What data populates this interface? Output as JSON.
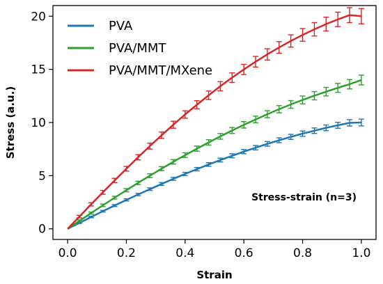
{
  "chart_data": {
    "type": "line",
    "title": "",
    "xlabel": "Strain",
    "ylabel": "Stress (a.u.)",
    "xlim": [
      -0.05,
      1.05
    ],
    "ylim": [
      -1,
      21
    ],
    "xticks": [
      0.0,
      0.2,
      0.4,
      0.6,
      0.8,
      1.0
    ],
    "xtick_labels": [
      "0.0",
      "0.2",
      "0.4",
      "0.6",
      "0.8",
      "1.0"
    ],
    "yticks": [
      0,
      5,
      10,
      15,
      20
    ],
    "ytick_labels": [
      "0",
      "5",
      "10",
      "15",
      "20"
    ],
    "grid": false,
    "legend_position": "top-left",
    "annotation": "Stress-strain (n=3)",
    "x": [
      0.0,
      0.04,
      0.08,
      0.12,
      0.16,
      0.2,
      0.24,
      0.28,
      0.32,
      0.36,
      0.4,
      0.44,
      0.48,
      0.52,
      0.56,
      0.6,
      0.64,
      0.68,
      0.72,
      0.76,
      0.8,
      0.84,
      0.88,
      0.92,
      0.96,
      1.0
    ],
    "series": [
      {
        "name": "PVA",
        "color": "#1f77b4",
        "values": [
          0.0,
          0.56,
          1.11,
          1.66,
          2.19,
          2.72,
          3.23,
          3.73,
          4.22,
          4.7,
          5.16,
          5.61,
          6.05,
          6.47,
          6.87,
          7.26,
          7.63,
          7.99,
          8.33,
          8.65,
          8.95,
          9.23,
          9.5,
          9.74,
          9.97,
          10.0
        ],
        "error": [
          0.05,
          0.06,
          0.07,
          0.08,
          0.09,
          0.1,
          0.11,
          0.12,
          0.13,
          0.14,
          0.15,
          0.16,
          0.17,
          0.18,
          0.19,
          0.2,
          0.21,
          0.22,
          0.23,
          0.24,
          0.25,
          0.26,
          0.27,
          0.28,
          0.3,
          0.32
        ]
      },
      {
        "name": "PVA/MMT",
        "color": "#2ca02c",
        "values": [
          0.0,
          0.74,
          1.48,
          2.21,
          2.93,
          3.63,
          4.32,
          5.0,
          5.66,
          6.3,
          6.93,
          7.54,
          8.13,
          8.7,
          9.25,
          9.78,
          10.29,
          10.78,
          11.25,
          11.7,
          12.12,
          12.52,
          12.9,
          13.26,
          13.6,
          14.0
        ],
        "error": [
          0.07,
          0.09,
          0.1,
          0.12,
          0.13,
          0.15,
          0.16,
          0.18,
          0.19,
          0.21,
          0.22,
          0.24,
          0.25,
          0.27,
          0.28,
          0.3,
          0.31,
          0.33,
          0.34,
          0.36,
          0.37,
          0.39,
          0.4,
          0.42,
          0.44,
          0.46
        ]
      },
      {
        "name": "PVA/MMT/MXene",
        "color": "#d62728",
        "values": [
          0.0,
          1.15,
          2.3,
          3.43,
          4.55,
          5.65,
          6.73,
          7.78,
          8.8,
          9.79,
          10.75,
          11.67,
          12.56,
          13.41,
          14.22,
          14.99,
          15.72,
          16.41,
          17.06,
          17.67,
          18.24,
          18.77,
          19.26,
          19.7,
          20.1,
          20.0
        ],
        "error": [
          0.1,
          0.12,
          0.15,
          0.18,
          0.2,
          0.22,
          0.25,
          0.28,
          0.3,
          0.33,
          0.35,
          0.38,
          0.4,
          0.43,
          0.45,
          0.48,
          0.5,
          0.53,
          0.55,
          0.58,
          0.6,
          0.63,
          0.65,
          0.68,
          0.7,
          0.72
        ]
      }
    ]
  }
}
